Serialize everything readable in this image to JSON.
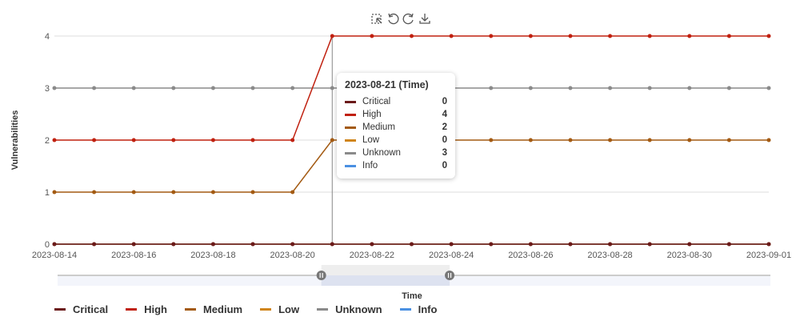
{
  "chart_data": {
    "type": "line",
    "xlabel": "Time",
    "ylabel": "Vulnerabilities",
    "ylim": [
      0,
      4
    ],
    "yticks": [
      "0",
      "1",
      "2",
      "3",
      "4"
    ],
    "x": [
      "2023-08-14",
      "2023-08-15",
      "2023-08-16",
      "2023-08-17",
      "2023-08-18",
      "2023-08-19",
      "2023-08-20",
      "2023-08-21",
      "2023-08-22",
      "2023-08-23",
      "2023-08-24",
      "2023-08-25",
      "2023-08-26",
      "2023-08-27",
      "2023-08-28",
      "2023-08-29",
      "2023-08-30",
      "2023-08-31",
      "2023-09-01"
    ],
    "xticks": [
      "2023-08-14",
      "2023-08-16",
      "2023-08-18",
      "2023-08-20",
      "2023-08-22",
      "2023-08-24",
      "2023-08-26",
      "2023-08-28",
      "2023-08-30",
      "2023-09-01"
    ],
    "grid": true,
    "legend_position": "bottom-left",
    "series": [
      {
        "name": "Critical",
        "color": "#6b1a1a",
        "values": [
          0,
          0,
          0,
          0,
          0,
          0,
          0,
          0,
          0,
          0,
          0,
          0,
          0,
          0,
          0,
          0,
          0,
          0,
          0
        ]
      },
      {
        "name": "High",
        "color": "#c0200f",
        "values": [
          2,
          2,
          2,
          2,
          2,
          2,
          2,
          4,
          4,
          4,
          4,
          4,
          4,
          4,
          4,
          4,
          4,
          4,
          4
        ]
      },
      {
        "name": "Medium",
        "color": "#a35a12",
        "values": [
          1,
          1,
          1,
          1,
          1,
          1,
          1,
          2,
          2,
          2,
          2,
          2,
          2,
          2,
          2,
          2,
          2,
          2,
          2
        ]
      },
      {
        "name": "Low",
        "color": "#d0851c",
        "values": [
          0,
          0,
          0,
          0,
          0,
          0,
          0,
          0,
          0,
          0,
          0,
          0,
          0,
          0,
          0,
          0,
          0,
          0,
          0
        ]
      },
      {
        "name": "Unknown",
        "color": "#8a8a8a",
        "values": [
          3,
          3,
          3,
          3,
          3,
          3,
          3,
          3,
          3,
          3,
          3,
          3,
          3,
          3,
          3,
          3,
          3,
          3,
          3
        ]
      },
      {
        "name": "Info",
        "color": "#4a90e2",
        "values": [
          0,
          0,
          0,
          0,
          0,
          0,
          0,
          0,
          0,
          0,
          0,
          0,
          0,
          0,
          0,
          0,
          0,
          0,
          0
        ]
      }
    ],
    "tooltip": {
      "title": "2023-08-21 (Time)",
      "index": 7
    },
    "zoom_range": [
      0.37,
      0.55
    ]
  },
  "toolbar": {
    "icons": [
      "zoom-select-icon",
      "undo-icon",
      "reset-icon",
      "download-icon"
    ]
  }
}
